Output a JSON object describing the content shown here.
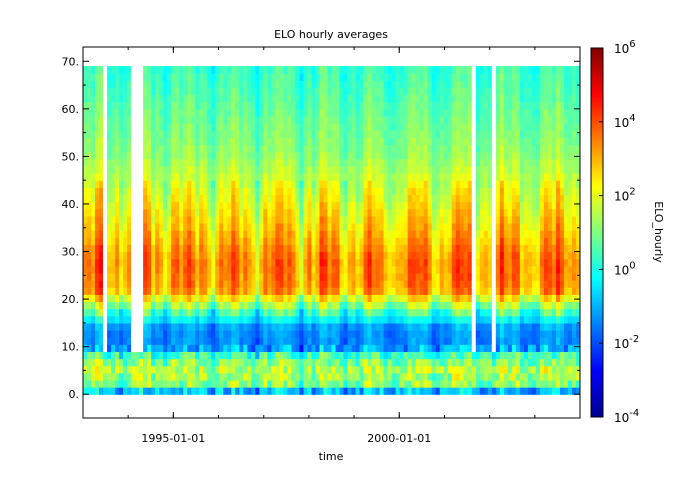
{
  "chart_data": {
    "type": "heatmap",
    "title": "ELO hourly averages",
    "xlabel": "time",
    "ylabel": "",
    "colorbar_label": "ELO_hourly",
    "x_ticks": [
      "1995-01-01",
      "2000-01-01"
    ],
    "x_range": [
      "1993-01-01",
      "2004-01-01"
    ],
    "data_x_range": [
      "1993-01-01",
      "2004-01-01"
    ],
    "y_ticks": [
      "0.",
      "10.",
      "20.",
      "30.",
      "40.",
      "50.",
      "60.",
      "70."
    ],
    "ylim": [
      -5,
      73
    ],
    "data_y_range": [
      0,
      69
    ],
    "colorbar": {
      "scale": "log",
      "range": [
        0.0001,
        1000000
      ],
      "ticks": [
        {
          "base": "10",
          "exp": "-4"
        },
        {
          "base": "10",
          "exp": "-2"
        },
        {
          "base": "10",
          "exp": "0"
        },
        {
          "base": "10",
          "exp": "2"
        },
        {
          "base": "10",
          "exp": "4"
        },
        {
          "base": "10",
          "exp": "6"
        }
      ],
      "colormap": "jet"
    },
    "log10_profile_by_row": [
      {
        "y": 0,
        "value": -2.0
      },
      {
        "y": 2,
        "value": 1.0
      },
      {
        "y": 5,
        "value": 1.6
      },
      {
        "y": 8,
        "value": 0.6
      },
      {
        "y": 10,
        "value": -1.4
      },
      {
        "y": 14,
        "value": -1.3
      },
      {
        "y": 18,
        "value": 0.8
      },
      {
        "y": 22,
        "value": 3.3
      },
      {
        "y": 28,
        "value": 3.5
      },
      {
        "y": 35,
        "value": 2.7
      },
      {
        "y": 42,
        "value": 2.0
      },
      {
        "y": 50,
        "value": 1.2
      },
      {
        "y": 60,
        "value": 0.7
      },
      {
        "y": 69,
        "value": 0.3
      }
    ],
    "gaps_x": [
      "1993-07",
      "1994-02",
      "1994-04",
      "2001-09",
      "2002-02"
    ]
  }
}
